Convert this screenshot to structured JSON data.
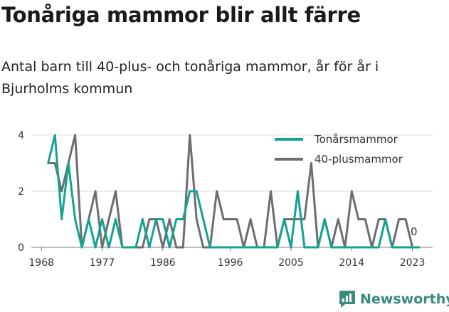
{
  "title": "Tonåriga mammor blir allt färre",
  "subtitle": "Antal barn till 40-plus- och tonåriga mammor, år för år i Bjurholms kommun",
  "brand": "Newsworthy",
  "chart_data": {
    "type": "line",
    "x": [
      1969,
      1970,
      1971,
      1972,
      1973,
      1974,
      1975,
      1976,
      1977,
      1978,
      1979,
      1980,
      1981,
      1982,
      1983,
      1984,
      1985,
      1986,
      1987,
      1988,
      1989,
      1990,
      1991,
      1992,
      1993,
      1994,
      1995,
      1996,
      1997,
      1998,
      1999,
      2000,
      2001,
      2002,
      2003,
      2004,
      2005,
      2006,
      2007,
      2008,
      2009,
      2010,
      2011,
      2012,
      2013,
      2014,
      2015,
      2016,
      2017,
      2018,
      2019,
      2020,
      2021,
      2022,
      2023,
      2024
    ],
    "series": [
      {
        "name": "Tonårsmammor",
        "color": "#12a391",
        "values": [
          3,
          4,
          1,
          3,
          1,
          0,
          1,
          0,
          1,
          0,
          1,
          0,
          0,
          0,
          1,
          0,
          1,
          1,
          0,
          1,
          1,
          2,
          2,
          1,
          0,
          0,
          0,
          0,
          0,
          0,
          0,
          0,
          0,
          0,
          0,
          1,
          0,
          2,
          0,
          0,
          0,
          1,
          0,
          0,
          0,
          0,
          0,
          0,
          0,
          0,
          1,
          0,
          0,
          0,
          0,
          0
        ]
      },
      {
        "name": "40-plusmammor",
        "color": "#6d6d72",
        "values": [
          3,
          3,
          2,
          3,
          4,
          0,
          1,
          2,
          0,
          1,
          2,
          0,
          0,
          0,
          0,
          1,
          1,
          0,
          1,
          0,
          0,
          4,
          1,
          0,
          0,
          2,
          1,
          1,
          1,
          0,
          1,
          0,
          0,
          2,
          0,
          1,
          1,
          1,
          1,
          3,
          0,
          1,
          0,
          1,
          0,
          2,
          1,
          1,
          0,
          1,
          1,
          0,
          1,
          1,
          0,
          0
        ]
      }
    ],
    "xticks": [
      "1968",
      "1977",
      "1986",
      "1996",
      "2005",
      "2014",
      "2023"
    ],
    "xtick_values": [
      1968,
      1977,
      1986,
      1996,
      2005,
      2014,
      2023
    ],
    "yticks": [
      "0",
      "2",
      "4"
    ],
    "ytick_values": [
      0,
      2,
      4
    ],
    "xlim": [
      1966.5,
      2026
    ],
    "ylim": [
      0,
      4
    ],
    "grid": true,
    "legend_position": "top-right",
    "end_label": "0"
  }
}
